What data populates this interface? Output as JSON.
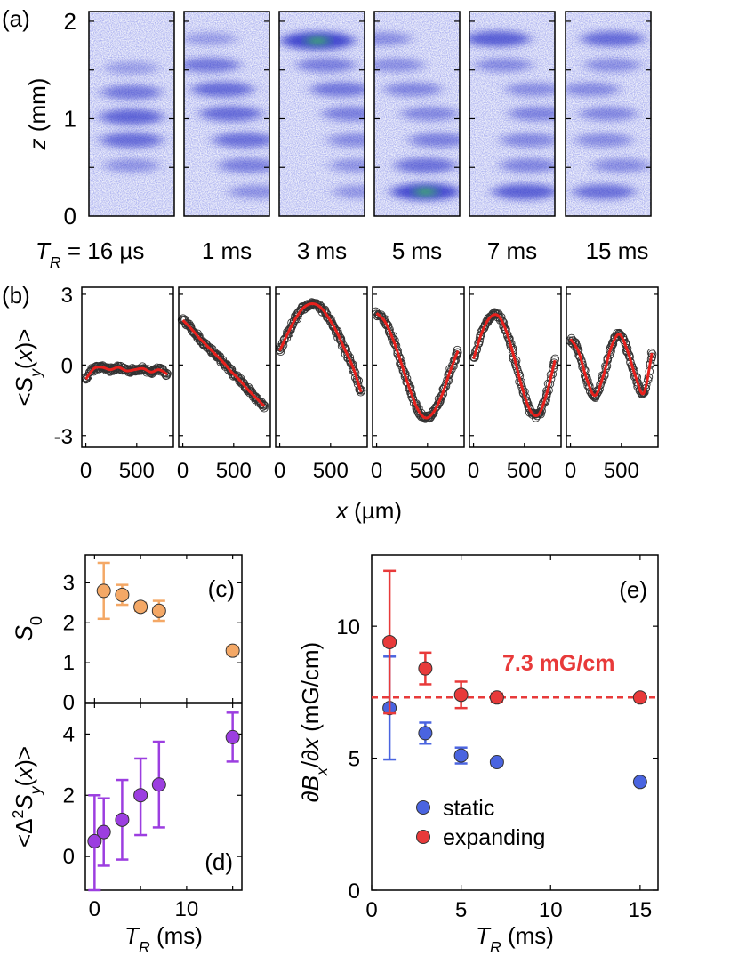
{
  "chart_data": [
    {
      "panel": "a",
      "type": "heatmap",
      "panel_label": "(a)",
      "ylabel_var": "z",
      "ylabel_unit": " (mm)",
      "yticks": [
        "0",
        "1",
        "2"
      ],
      "ylim": [
        0,
        2.1
      ],
      "label_prefix_var": "T",
      "label_prefix_sub": "R",
      "label_prefix_rest": " = 16 µs",
      "column_labels": [
        "",
        "1 ms",
        "3 ms",
        "5 ms",
        "7 ms",
        "15 ms"
      ],
      "colors": {
        "low": "#c8ccf2",
        "mid": "#2a32c8",
        "high": "#3ce03c"
      },
      "images": [
        {
          "bands": [
            [
              1.27,
              0.7,
              0.5,
              0.08
            ],
            [
              1.02,
              0.95,
              0.5,
              0.08
            ],
            [
              0.78,
              0.85,
              0.5,
              0.08
            ],
            [
              0.52,
              0.35,
              0.5,
              0.06
            ],
            [
              1.52,
              0.2,
              0.5,
              0.06
            ]
          ]
        },
        {
          "bands": [
            [
              1.82,
              0.2,
              0.3,
              0.05
            ],
            [
              1.55,
              0.7,
              0.3,
              0.07
            ],
            [
              1.3,
              0.85,
              0.45,
              0.07
            ],
            [
              1.05,
              0.85,
              0.55,
              0.07
            ],
            [
              0.78,
              0.8,
              0.7,
              0.07
            ],
            [
              0.52,
              0.6,
              0.75,
              0.06
            ],
            [
              0.25,
              0.35,
              0.85,
              0.05
            ]
          ]
        },
        {
          "bands": [
            [
              1.8,
              1.6,
              0.45,
              0.07
            ],
            [
              1.55,
              0.6,
              0.55,
              0.06
            ],
            [
              1.3,
              0.7,
              0.72,
              0.06
            ],
            [
              1.05,
              0.6,
              0.85,
              0.06
            ],
            [
              0.78,
              0.45,
              0.9,
              0.05
            ],
            [
              0.52,
              0.35,
              0.92,
              0.05
            ],
            [
              0.25,
              0.3,
              0.95,
              0.05
            ]
          ]
        },
        {
          "bands": [
            [
              1.82,
              0.4,
              0.1,
              0.05
            ],
            [
              1.55,
              0.4,
              0.25,
              0.05
            ],
            [
              1.3,
              0.5,
              0.45,
              0.05
            ],
            [
              1.05,
              0.5,
              0.65,
              0.05
            ],
            [
              0.78,
              0.6,
              0.75,
              0.06
            ],
            [
              0.52,
              0.8,
              0.6,
              0.07
            ],
            [
              0.25,
              1.3,
              0.6,
              0.07
            ]
          ]
        },
        {
          "bands": [
            [
              1.82,
              1.0,
              0.33,
              0.06
            ],
            [
              1.55,
              0.45,
              0.4,
              0.05
            ],
            [
              1.3,
              0.4,
              0.75,
              0.05
            ],
            [
              1.05,
              0.55,
              0.8,
              0.05
            ],
            [
              0.78,
              0.5,
              0.7,
              0.05
            ],
            [
              0.52,
              0.55,
              0.7,
              0.05
            ],
            [
              0.25,
              1.0,
              0.65,
              0.07
            ]
          ]
        },
        {
          "bands": [
            [
              1.82,
              0.85,
              0.55,
              0.04
            ],
            [
              1.55,
              0.4,
              0.55,
              0.04
            ],
            [
              1.3,
              0.45,
              0.3,
              0.04
            ],
            [
              1.05,
              0.5,
              0.5,
              0.04
            ],
            [
              0.78,
              0.45,
              0.45,
              0.04
            ],
            [
              0.52,
              0.45,
              0.65,
              0.04
            ],
            [
              0.25,
              0.8,
              0.45,
              0.04
            ]
          ]
        }
      ]
    },
    {
      "panel": "b",
      "type": "scatter",
      "panel_label": "(b)",
      "ylabel_prefix": "<",
      "ylabel_var": "S",
      "ylabel_sub": "y",
      "ylabel_mid": "(",
      "ylabel_var2": "x",
      "ylabel_end": ")>",
      "xlabel_var": "x",
      "xlabel_unit": " (µm)",
      "xticks": [
        0,
        500
      ],
      "yticks": [
        -3,
        0,
        3
      ],
      "xlim": [
        -40,
        860
      ],
      "ylim": [
        -3.5,
        3.3
      ],
      "fit_color": "#e8201c",
      "point_color": "#333333",
      "series": [
        {
          "x": [
            0,
            80,
            160,
            240,
            320,
            400,
            480,
            560,
            640,
            720,
            800
          ],
          "y": [
            -0.6,
            -0.15,
            -0.1,
            -0.2,
            -0.1,
            -0.25,
            -0.2,
            -0.15,
            -0.3,
            -0.2,
            -0.4
          ]
        },
        {
          "x": [
            0,
            80,
            160,
            240,
            320,
            400,
            480,
            560,
            640,
            720,
            800
          ],
          "y": [
            1.9,
            1.55,
            1.15,
            0.8,
            0.45,
            0.1,
            -0.3,
            -0.65,
            -1.05,
            -1.4,
            -1.75
          ]
        },
        {
          "x": [
            0,
            80,
            160,
            240,
            320,
            400,
            480,
            560,
            640,
            720,
            800
          ],
          "y": [
            0.6,
            1.35,
            2.0,
            2.45,
            2.6,
            2.45,
            2.0,
            1.4,
            0.65,
            -0.1,
            -1.15
          ]
        },
        {
          "x": [
            0,
            80,
            160,
            240,
            320,
            400,
            480,
            560,
            640,
            720,
            800
          ],
          "y": [
            2.2,
            1.85,
            1.1,
            0.1,
            -0.95,
            -1.85,
            -2.25,
            -2.0,
            -1.3,
            -0.3,
            0.6
          ]
        },
        {
          "x": [
            0,
            80,
            160,
            240,
            320,
            400,
            480,
            560,
            640,
            720,
            800
          ],
          "y": [
            0.25,
            1.35,
            2.0,
            2.1,
            1.45,
            0.3,
            -1.0,
            -1.95,
            -2.1,
            -1.2,
            0.2
          ]
        },
        {
          "x": [
            0,
            80,
            160,
            240,
            320,
            400,
            480,
            560,
            640,
            720,
            800
          ],
          "y": [
            1.1,
            0.55,
            -0.6,
            -1.3,
            -0.5,
            0.75,
            1.3,
            0.6,
            -0.5,
            -1.2,
            0.5
          ]
        }
      ]
    },
    {
      "panel": "c",
      "type": "scatter",
      "panel_label": "(c)",
      "ylabel_var": "S",
      "ylabel_sub": "0",
      "yticks": [
        0,
        1,
        2,
        3
      ],
      "ylim": [
        0,
        3.7
      ],
      "xlim": [
        -1,
        16
      ],
      "color": "#f4a866",
      "points": [
        {
          "x": 1,
          "y": 2.8,
          "lo": 2.1,
          "hi": 3.5
        },
        {
          "x": 3,
          "y": 2.7,
          "lo": 2.45,
          "hi": 2.95
        },
        {
          "x": 5,
          "y": 2.4,
          "lo": 2.3,
          "hi": 2.5
        },
        {
          "x": 7,
          "y": 2.3,
          "lo": 2.05,
          "hi": 2.55
        },
        {
          "x": 15,
          "y": 1.3,
          "lo": 1.2,
          "hi": 1.4
        }
      ]
    },
    {
      "panel": "d",
      "type": "scatter",
      "panel_label": "(d)",
      "ylabel_prefix": "<Δ",
      "ylabel_sup": "2",
      "ylabel_var": "S",
      "ylabel_sub": "y",
      "ylabel_mid": "(",
      "ylabel_var2": "x",
      "ylabel_end": ")>",
      "xlabel_var": "T",
      "xlabel_sub": "R",
      "xlabel_unit": " (ms)",
      "xticks": [
        0,
        10
      ],
      "yticks": [
        0,
        2,
        4
      ],
      "ylim": [
        -1.1,
        5
      ],
      "xlim": [
        -1,
        16
      ],
      "color": "#9c3ee0",
      "points": [
        {
          "x": 0,
          "y": 0.5,
          "lo": -1.1,
          "hi": 2.0
        },
        {
          "x": 1,
          "y": 0.8,
          "lo": -0.3,
          "hi": 1.9
        },
        {
          "x": 3,
          "y": 1.2,
          "lo": -0.1,
          "hi": 2.5
        },
        {
          "x": 5,
          "y": 2.0,
          "lo": 0.7,
          "hi": 3.2
        },
        {
          "x": 7,
          "y": 2.35,
          "lo": 0.95,
          "hi": 3.75
        },
        {
          "x": 15,
          "y": 3.9,
          "lo": 3.1,
          "hi": 4.7
        }
      ]
    },
    {
      "panel": "e",
      "type": "scatter",
      "panel_label": "(e)",
      "ylabel_prefix": "∂",
      "ylabel_var": "B",
      "ylabel_sub": "x",
      "ylabel_mid": "/∂",
      "ylabel_var2": "x",
      "ylabel_end": " (mG/cm)",
      "xlabel_var": "T",
      "xlabel_sub": "R",
      "xlabel_unit": " (ms)",
      "xticks": [
        0,
        5,
        10,
        15
      ],
      "yticks": [
        0,
        5,
        10
      ],
      "xlim": [
        0,
        16
      ],
      "ylim": [
        0,
        12.7
      ],
      "annotation": "7.3 mG/cm",
      "annotation_color": "#e83a3a",
      "reference_line": 7.3,
      "legend_position": "lower-left",
      "series": [
        {
          "name": "static",
          "color": "#4a64e0",
          "points": [
            {
              "x": 1,
              "y": 6.9,
              "lo": 4.95,
              "hi": 8.85
            },
            {
              "x": 3,
              "y": 5.95,
              "lo": 5.55,
              "hi": 6.35
            },
            {
              "x": 5,
              "y": 5.1,
              "lo": 4.8,
              "hi": 5.4
            },
            {
              "x": 7,
              "y": 4.85,
              "lo": 4.75,
              "hi": 4.95
            },
            {
              "x": 15,
              "y": 4.1,
              "lo": 4.0,
              "hi": 4.2
            }
          ]
        },
        {
          "name": "expanding",
          "color": "#e83a3a",
          "points": [
            {
              "x": 1,
              "y": 9.4,
              "lo": 6.7,
              "hi": 12.1
            },
            {
              "x": 3,
              "y": 8.4,
              "lo": 7.8,
              "hi": 9.0
            },
            {
              "x": 5,
              "y": 7.4,
              "lo": 6.9,
              "hi": 7.9
            },
            {
              "x": 7,
              "y": 7.3,
              "lo": 7.15,
              "hi": 7.45
            },
            {
              "x": 15,
              "y": 7.3,
              "lo": 7.2,
              "hi": 7.4
            }
          ]
        }
      ]
    }
  ]
}
